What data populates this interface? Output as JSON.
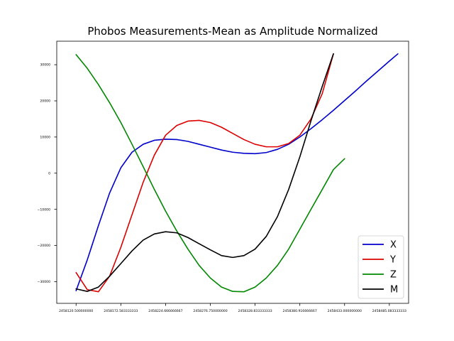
{
  "chart_data": {
    "type": "line",
    "title": "Phobos Measurements-Mean as Amplitude Normalized",
    "xlabel": "",
    "ylabel": "",
    "xlim": [
      2458098.0,
      2458507.5
    ],
    "ylim": [
      -36000,
      36500
    ],
    "x_ticks": [
      2458120.5,
      2458172.583333333,
      2458224.666666667,
      2458276.75,
      2458328.833333333,
      2458380.916666667,
      2458433.0,
      2458485.083333333
    ],
    "x_tick_labels": [
      "2458120.500000000",
      "2458172.583333333",
      "2458224.666666667",
      "2458276.750000000",
      "2458328.833333333",
      "2458380.916666667",
      "2458433.000000000",
      "2458485.083333333"
    ],
    "y_ticks": [
      -30000,
      -20000,
      -10000,
      0,
      10000,
      20000,
      30000
    ],
    "y_tick_labels": [
      "−30000",
      "−20000",
      "−10000",
      "0",
      "10000",
      "20000",
      "30000"
    ],
    "grid": false,
    "legend_position": "lower-right",
    "x": [
      2458120.5,
      2458133.5,
      2458146.5,
      2458159.5,
      2458172.6,
      2458185.6,
      2458198.6,
      2458211.6,
      2458224.7,
      2458237.7,
      2458250.7,
      2458263.7,
      2458276.8,
      2458289.8,
      2458302.8,
      2458315.8,
      2458328.8,
      2458341.8,
      2458354.9,
      2458367.9,
      2458380.9,
      2458393.9,
      2458407.0,
      2458420.0,
      2458433.0,
      2458446.0,
      2458459.0,
      2458472.1,
      2458485.1,
      2458495.0
    ],
    "series": [
      {
        "name": "X",
        "color": "#0000cc",
        "values": [
          -32500,
          -24000,
          -14500,
          -5500,
          1500,
          5800,
          8000,
          9100,
          9400,
          9300,
          8800,
          8000,
          7200,
          6400,
          5800,
          5500,
          5400,
          5700,
          6600,
          8000,
          10000,
          12300,
          14800,
          17400,
          20100,
          22800,
          25600,
          28300,
          31000,
          33000
        ]
      },
      {
        "name": "Y",
        "color": "#dd0000",
        "values": [
          -27500,
          -32200,
          -32800,
          -28500,
          -20500,
          -11500,
          -2500,
          5000,
          10500,
          13200,
          14400,
          14600,
          14000,
          12700,
          11000,
          9300,
          8000,
          7300,
          7300,
          8200,
          10500,
          15000,
          22000,
          33000,
          null,
          null,
          null,
          null,
          null,
          null
        ]
      },
      {
        "name": "Z",
        "color": "#008800",
        "values": [
          32800,
          29000,
          24500,
          19500,
          14000,
          8000,
          1800,
          -4500,
          -10500,
          -16000,
          -21000,
          -25500,
          -29000,
          -31500,
          -32700,
          -32800,
          -31500,
          -29000,
          -25500,
          -21000,
          -15500,
          -10000,
          -4500,
          1000,
          4000,
          null,
          null,
          null,
          null,
          null
        ]
      },
      {
        "name": "M",
        "color": "#000000",
        "values": [
          -32000,
          -32700,
          -31500,
          -28500,
          -25000,
          -21500,
          -18500,
          -16800,
          -16200,
          -16500,
          -17800,
          -19500,
          -21200,
          -22800,
          -23300,
          -22800,
          -21000,
          -17500,
          -12000,
          -4500,
          4500,
          14500,
          24000,
          33000,
          null,
          null,
          null,
          null,
          null,
          null
        ]
      }
    ]
  }
}
